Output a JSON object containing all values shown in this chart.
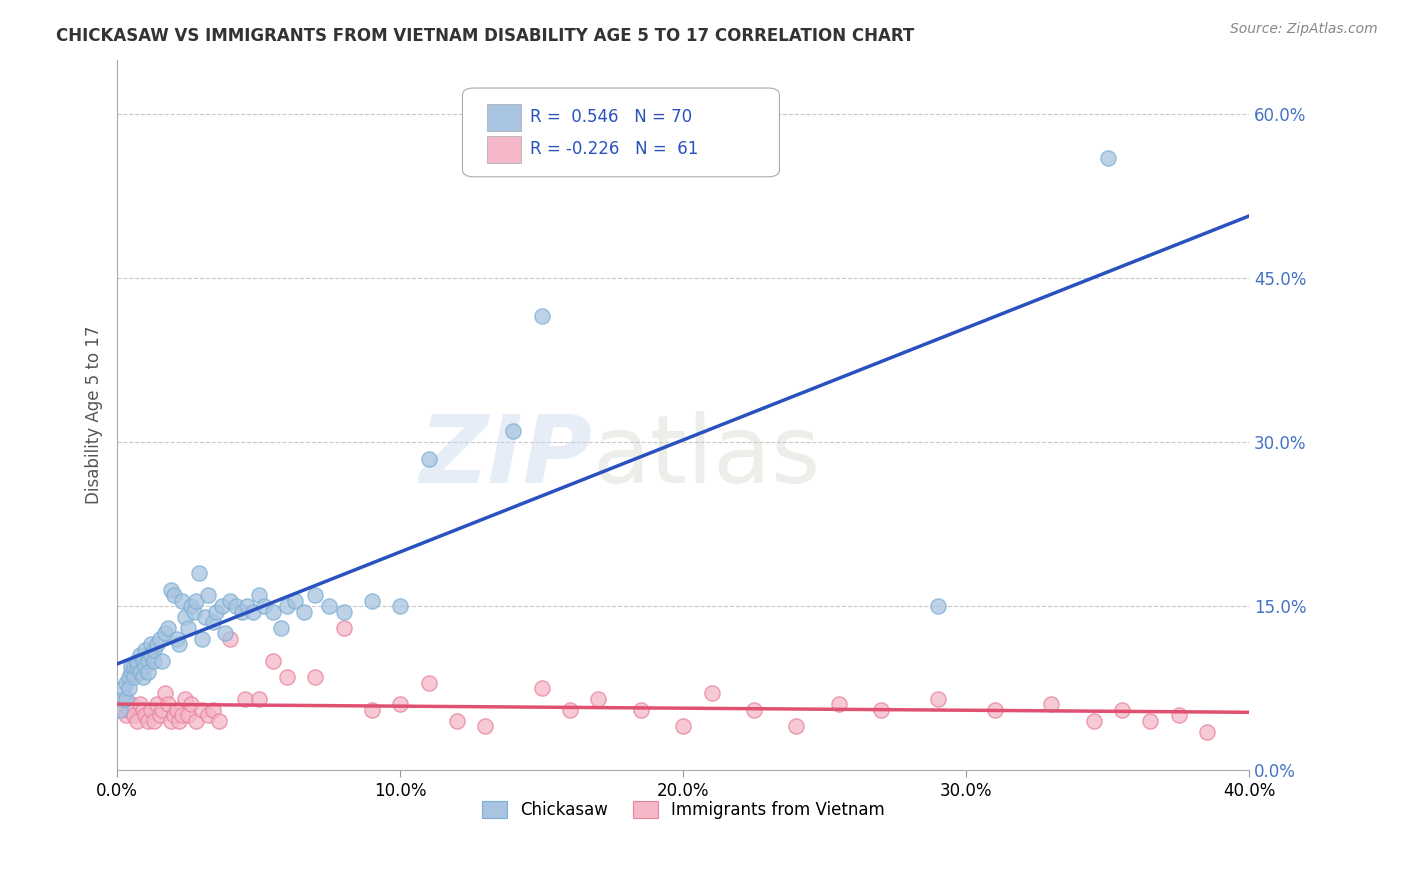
{
  "title": "CHICKASAW VS IMMIGRANTS FROM VIETNAM DISABILITY AGE 5 TO 17 CORRELATION CHART",
  "source": "Source: ZipAtlas.com",
  "ylabel": "Disability Age 5 to 17",
  "xlim": [
    0.0,
    0.4
  ],
  "ylim": [
    0.0,
    0.65
  ],
  "xticks": [
    0.0,
    0.1,
    0.2,
    0.3,
    0.4
  ],
  "xtick_labels": [
    "0.0%",
    "10.0%",
    "20.0%",
    "30.0%",
    "40.0%"
  ],
  "yticks_right": [
    0.0,
    0.15,
    0.3,
    0.45,
    0.6
  ],
  "ytick_labels_right": [
    "0.0%",
    "15.0%",
    "30.0%",
    "45.0%",
    "60.0%"
  ],
  "chickasaw_color": "#a8c4e0",
  "vietnam_color": "#f4b8c8",
  "chickasaw_edge_color": "#7bafd4",
  "vietnam_edge_color": "#e8809a",
  "chickasaw_line_color": "#2a52be",
  "vietnam_line_color": "#e05070",
  "watermark": "ZIPatlas",
  "background_color": "#ffffff",
  "grid_color": "#c8c8c8",
  "chickasaw_R": 0.546,
  "chickasaw_N": 70,
  "vietnam_R": -0.226,
  "vietnam_N": 61,
  "chickasaw_x": [
    0.001,
    0.002,
    0.002,
    0.003,
    0.003,
    0.004,
    0.004,
    0.005,
    0.005,
    0.006,
    0.006,
    0.007,
    0.007,
    0.008,
    0.008,
    0.009,
    0.009,
    0.01,
    0.01,
    0.011,
    0.011,
    0.012,
    0.012,
    0.013,
    0.013,
    0.014,
    0.015,
    0.016,
    0.017,
    0.018,
    0.019,
    0.02,
    0.021,
    0.022,
    0.023,
    0.024,
    0.025,
    0.026,
    0.027,
    0.028,
    0.029,
    0.03,
    0.031,
    0.032,
    0.034,
    0.035,
    0.037,
    0.038,
    0.04,
    0.042,
    0.044,
    0.046,
    0.048,
    0.05,
    0.052,
    0.055,
    0.058,
    0.06,
    0.063,
    0.066,
    0.07,
    0.075,
    0.08,
    0.09,
    0.1,
    0.11,
    0.14,
    0.15,
    0.29,
    0.35
  ],
  "chickasaw_y": [
    0.055,
    0.065,
    0.075,
    0.08,
    0.065,
    0.085,
    0.075,
    0.09,
    0.095,
    0.085,
    0.095,
    0.095,
    0.1,
    0.09,
    0.105,
    0.1,
    0.085,
    0.095,
    0.11,
    0.1,
    0.09,
    0.115,
    0.105,
    0.1,
    0.11,
    0.115,
    0.12,
    0.1,
    0.125,
    0.13,
    0.165,
    0.16,
    0.12,
    0.115,
    0.155,
    0.14,
    0.13,
    0.15,
    0.145,
    0.155,
    0.18,
    0.12,
    0.14,
    0.16,
    0.135,
    0.145,
    0.15,
    0.125,
    0.155,
    0.15,
    0.145,
    0.15,
    0.145,
    0.16,
    0.15,
    0.145,
    0.13,
    0.15,
    0.155,
    0.145,
    0.16,
    0.15,
    0.145,
    0.155,
    0.15,
    0.285,
    0.31,
    0.415,
    0.15,
    0.56
  ],
  "vietnam_x": [
    0.001,
    0.002,
    0.003,
    0.004,
    0.005,
    0.006,
    0.007,
    0.008,
    0.009,
    0.01,
    0.011,
    0.012,
    0.013,
    0.014,
    0.015,
    0.016,
    0.017,
    0.018,
    0.019,
    0.02,
    0.021,
    0.022,
    0.023,
    0.024,
    0.025,
    0.026,
    0.028,
    0.03,
    0.032,
    0.034,
    0.036,
    0.04,
    0.045,
    0.05,
    0.055,
    0.06,
    0.07,
    0.08,
    0.09,
    0.1,
    0.11,
    0.12,
    0.13,
    0.15,
    0.16,
    0.17,
    0.185,
    0.2,
    0.21,
    0.225,
    0.24,
    0.255,
    0.27,
    0.29,
    0.31,
    0.33,
    0.345,
    0.355,
    0.365,
    0.375,
    0.385
  ],
  "vietnam_y": [
    0.06,
    0.055,
    0.05,
    0.055,
    0.06,
    0.05,
    0.045,
    0.06,
    0.055,
    0.05,
    0.045,
    0.055,
    0.045,
    0.06,
    0.05,
    0.055,
    0.07,
    0.06,
    0.045,
    0.05,
    0.055,
    0.045,
    0.05,
    0.065,
    0.05,
    0.06,
    0.045,
    0.055,
    0.05,
    0.055,
    0.045,
    0.12,
    0.065,
    0.065,
    0.1,
    0.085,
    0.085,
    0.13,
    0.055,
    0.06,
    0.08,
    0.045,
    0.04,
    0.075,
    0.055,
    0.065,
    0.055,
    0.04,
    0.07,
    0.055,
    0.04,
    0.06,
    0.055,
    0.065,
    0.055,
    0.06,
    0.045,
    0.055,
    0.045,
    0.05,
    0.035
  ]
}
